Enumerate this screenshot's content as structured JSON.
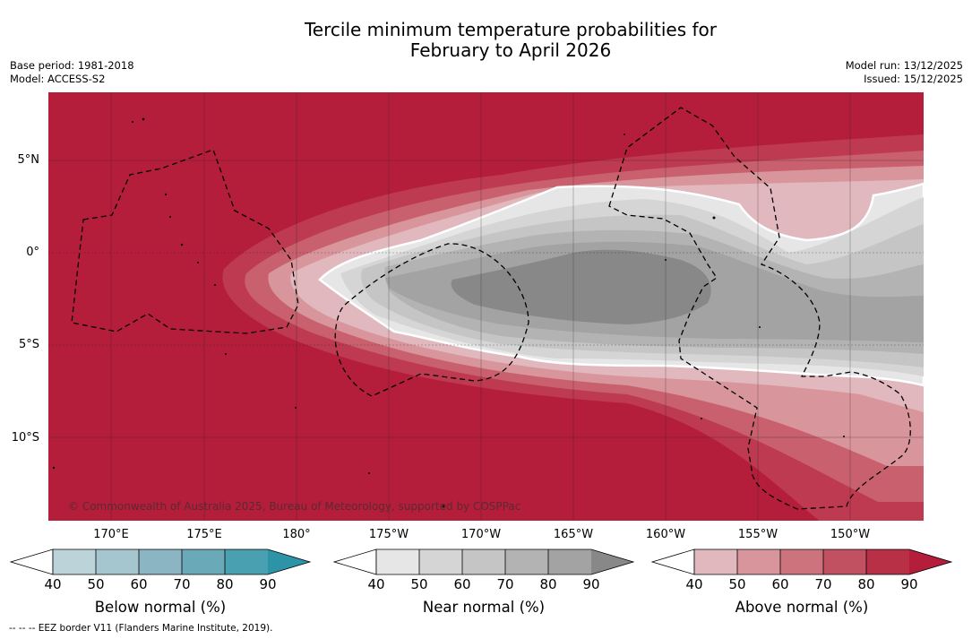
{
  "title": {
    "line1": "Tercile minimum temperature probabilities for",
    "line2": "February to April 2026"
  },
  "meta": {
    "base_period": "Base period: 1981-2018",
    "model": "Model: ACCESS-S2",
    "model_run": "Model run: 13/12/2025",
    "issued": "Issued: 15/12/2025"
  },
  "map": {
    "copyright": "© Commonwealth of Australia 2025, Bureau of Meteorology, supported by COSPPac",
    "lat_labels": [
      "5°N",
      "0°",
      "5°S",
      "10°S"
    ],
    "lon_labels": [
      "170°E",
      "175°E",
      "180°",
      "175°W",
      "170°W",
      "165°W",
      "160°W",
      "155°W",
      "150°W"
    ]
  },
  "colors": {
    "above_90": "#b41e3b",
    "below_scale": [
      "#bcd3da",
      "#a5c6ce",
      "#8bb5c2",
      "#6aaab8",
      "#48a0b0",
      "#2d94a8"
    ],
    "near_scale": [
      "#e6e6e6",
      "#d5d5d5",
      "#c5c5c5",
      "#b3b3b3",
      "#a3a3a3",
      "#888888"
    ],
    "above_scale": [
      "#e0b8bd",
      "#d8959c",
      "#cc737d",
      "#c15060",
      "#b83045",
      "#b41e3b"
    ]
  },
  "colorbars": {
    "ticks": [
      "40",
      "50",
      "60",
      "70",
      "80",
      "90"
    ],
    "below": {
      "label": "Below normal (%)"
    },
    "near": {
      "label": "Near normal (%)"
    },
    "above": {
      "label": "Above normal (%)"
    }
  },
  "footer": {
    "eez": "--  --  -- EEZ border V11 (Flanders Marine Institute, 2019)."
  }
}
